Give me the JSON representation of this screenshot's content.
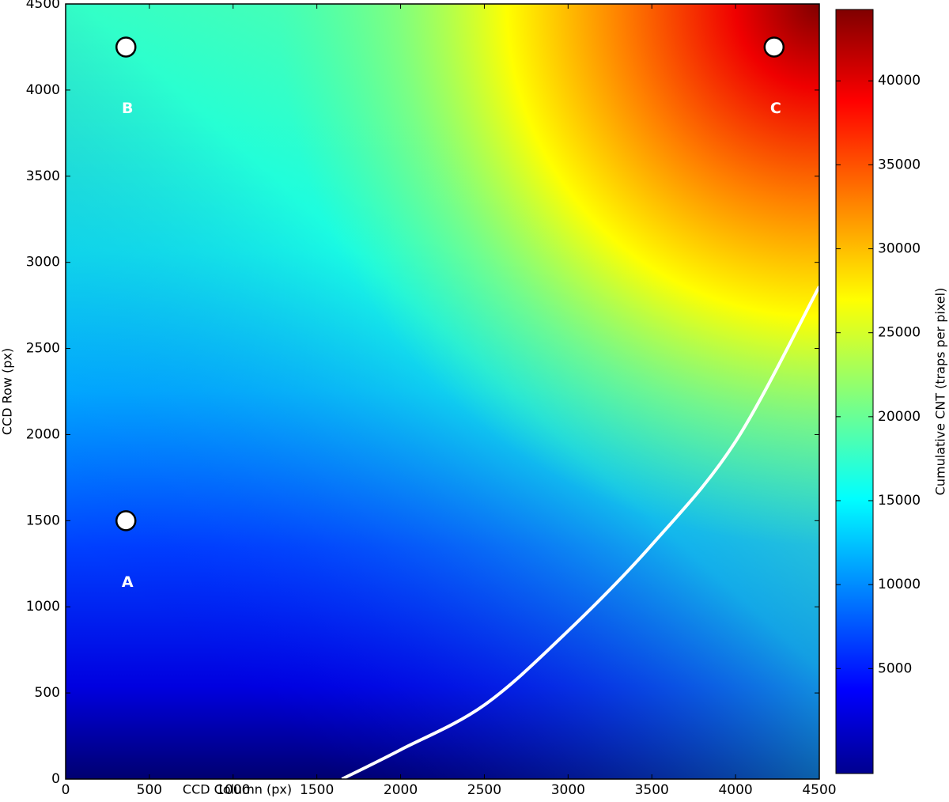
{
  "chart_data": {
    "type": "heatmap",
    "xlabel": "CCD Column (px)",
    "ylabel": "CCD Row (px)",
    "xlim": [
      0,
      4500
    ],
    "ylim": [
      0,
      4500
    ],
    "xticks": [
      0,
      500,
      1000,
      1500,
      2000,
      2500,
      3000,
      3500,
      4000,
      4500
    ],
    "yticks": [
      0,
      500,
      1000,
      1500,
      2000,
      2500,
      3000,
      3500,
      4000,
      4500
    ],
    "points": [
      {
        "label": "A",
        "x": 360,
        "y": 1500
      },
      {
        "label": "B",
        "x": 360,
        "y": 4250
      },
      {
        "label": "C",
        "x": 4230,
        "y": 4250
      }
    ],
    "curve": {
      "color": "#ffffff",
      "x": [
        1650,
        2000,
        2500,
        3000,
        3500,
        4000,
        4500
      ],
      "y": [
        0,
        170,
        430,
        860,
        1360,
        1960,
        2860
      ]
    },
    "colorbar": {
      "label": "Cumulative CNT (traps per pixel)",
      "clim": [
        -1250,
        44250
      ],
      "ticks": [
        5000,
        10000,
        15000,
        20000,
        25000,
        30000,
        35000,
        40000
      ]
    }
  }
}
